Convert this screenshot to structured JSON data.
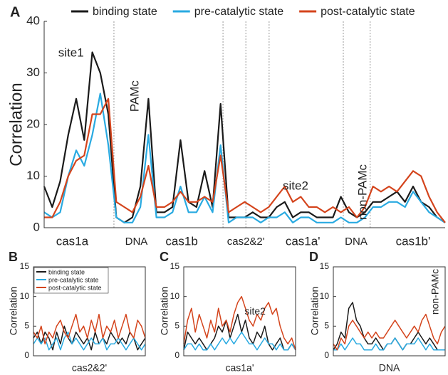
{
  "chart_data": [
    {
      "type": "line",
      "panel_label": "A",
      "ylabel": "Correlation",
      "x": [
        0,
        2,
        4,
        6,
        8,
        10,
        12,
        14,
        16,
        18,
        20,
        22,
        24,
        26,
        28,
        30,
        32,
        34,
        36,
        38,
        40,
        42,
        44,
        46,
        48,
        50,
        52,
        54,
        56,
        58,
        60,
        62,
        64,
        66,
        68,
        70,
        72,
        74,
        76,
        78,
        80,
        82,
        84,
        86,
        88,
        90,
        92,
        94,
        96,
        98,
        100
      ],
      "xlim": [
        0,
        100
      ],
      "ylim": [
        0,
        40
      ],
      "yticks": [
        0,
        10,
        20,
        30,
        40
      ],
      "legend": "top",
      "series": [
        {
          "name": "binding state",
          "color": "#1a1a1a",
          "values": [
            8,
            4,
            9,
            18,
            25,
            17,
            34,
            30,
            22,
            2,
            1,
            2,
            8,
            25,
            3,
            3,
            4,
            17,
            5,
            4,
            11,
            4,
            24,
            2,
            2,
            2,
            3,
            2,
            2,
            4,
            5,
            2,
            3,
            3,
            2,
            2,
            2,
            6,
            3,
            2,
            3,
            5,
            5,
            6,
            7,
            5,
            8,
            5,
            4,
            2,
            1
          ]
        },
        {
          "name": "pre-catalytic state",
          "color": "#29aae1",
          "values": [
            3,
            2,
            3,
            10,
            15,
            12,
            18,
            26,
            16,
            2,
            1,
            1,
            4,
            18,
            2,
            2,
            3,
            8,
            3,
            3,
            6,
            3,
            16,
            1,
            2,
            2,
            2,
            1,
            2,
            2,
            3,
            1,
            2,
            2,
            1,
            1,
            1,
            2,
            1,
            1,
            2,
            4,
            4,
            5,
            5,
            4,
            7,
            5,
            3,
            2,
            1
          ]
        },
        {
          "name": "post-catalytic state",
          "color": "#d4441c",
          "values": [
            2,
            2,
            5,
            10,
            13,
            14,
            22,
            22,
            25,
            5,
            4,
            3,
            6,
            12,
            4,
            4,
            5,
            7,
            5,
            5,
            6,
            5,
            14,
            3,
            4,
            5,
            4,
            3,
            4,
            6,
            8,
            5,
            6,
            4,
            4,
            3,
            4,
            3,
            4,
            2,
            4,
            8,
            7,
            8,
            7,
            9,
            11,
            10,
            6,
            3,
            1
          ]
        }
      ],
      "separators": [
        17.4,
        44.6,
        50.3,
        56.1,
        74.6,
        81.3
      ],
      "region_labels": [
        {
          "label": "cas1a",
          "x": 7
        },
        {
          "label": "DNA",
          "x": 23
        },
        {
          "label": "cas1b",
          "x": 34.3
        },
        {
          "label": "cas2&2'",
          "x": 50.3
        },
        {
          "label": "cas1a'",
          "x": 64.5
        },
        {
          "label": "DNA",
          "x": 77.8
        },
        {
          "label": "cas1b'",
          "x": 92
        }
      ],
      "annotations": [
        {
          "text": "site1",
          "x": 6.7,
          "y": 33.8
        },
        {
          "text": "PAMc",
          "x": 22.7,
          "y": 25.5
        },
        {
          "text": "site2",
          "x": 62.7,
          "y": 8
        },
        {
          "text": "non-PAMc",
          "x": 79.6,
          "y": 6.9
        }
      ]
    },
    {
      "type": "line",
      "panel_label": "B",
      "ylabel": "Correlation",
      "xlabel": "cas2&2'",
      "x": [
        0,
        1,
        2,
        3,
        4,
        5,
        6,
        7,
        8,
        9,
        10,
        11,
        12,
        13,
        14,
        15,
        16,
        17,
        18,
        19,
        20,
        21,
        22,
        23,
        24,
        25,
        26,
        27,
        28,
        29
      ],
      "xlim": [
        0,
        29
      ],
      "ylim": [
        0,
        15
      ],
      "yticks": [
        0,
        5,
        10,
        15
      ],
      "legend": "upper left",
      "series": [
        {
          "name": "binding state",
          "color": "#1a1a1a",
          "values": [
            3,
            4,
            2,
            4,
            3,
            1,
            4,
            2,
            5,
            3,
            2,
            4,
            3,
            2,
            3,
            1,
            4,
            2,
            3,
            2,
            4,
            3,
            2,
            3,
            2,
            4,
            3,
            1,
            2,
            3
          ]
        },
        {
          "name": "pre-catalytic state",
          "color": "#29aae1",
          "values": [
            2,
            3,
            2,
            3,
            1,
            2,
            3,
            1,
            3,
            4,
            2,
            3,
            2,
            1,
            2,
            3,
            2,
            2,
            3,
            1,
            2,
            2,
            3,
            2,
            1,
            2,
            3,
            2,
            1,
            2
          ]
        },
        {
          "name": "post-catalytic state",
          "color": "#d4441c",
          "values": [
            4,
            3,
            5,
            2,
            4,
            3,
            5,
            6,
            4,
            3,
            5,
            7,
            4,
            5,
            3,
            6,
            4,
            7,
            3,
            5,
            4,
            6,
            3,
            5,
            7,
            4,
            3,
            6,
            5,
            3
          ]
        }
      ]
    },
    {
      "type": "line",
      "panel_label": "C",
      "ylabel": "Correlation",
      "xlabel": "cas1a'",
      "x": [
        0,
        1,
        2,
        3,
        4,
        5,
        6,
        7,
        8,
        9,
        10,
        11,
        12,
        13,
        14,
        15,
        16,
        17,
        18,
        19,
        20,
        21,
        22,
        23,
        24,
        25,
        26,
        27,
        28,
        29
      ],
      "xlim": [
        0,
        29
      ],
      "ylim": [
        0,
        15
      ],
      "yticks": [
        0,
        5,
        10,
        15
      ],
      "series": [
        {
          "color": "#1a1a1a",
          "values": [
            1,
            4,
            3,
            2,
            3,
            2,
            1,
            2,
            3,
            5,
            4,
            6,
            3,
            5,
            7,
            4,
            6,
            3,
            2,
            4,
            3,
            5,
            2,
            1,
            2,
            3,
            1,
            1,
            2,
            1
          ]
        },
        {
          "color": "#29aae1",
          "values": [
            1,
            2,
            2,
            1,
            2,
            1,
            1,
            2,
            1,
            2,
            3,
            2,
            3,
            2,
            3,
            4,
            3,
            2,
            2,
            1,
            2,
            3,
            2,
            2,
            1,
            2,
            1,
            1,
            2,
            1
          ]
        },
        {
          "color": "#d4441c",
          "values": [
            2,
            6,
            8,
            4,
            7,
            5,
            3,
            6,
            4,
            8,
            5,
            6,
            4,
            7,
            9,
            10,
            8,
            6,
            5,
            7,
            6,
            8,
            9,
            7,
            8,
            5,
            3,
            2,
            3,
            1
          ]
        }
      ],
      "annotations": [
        {
          "text": "site2",
          "x": 18.5,
          "y": 7.4
        }
      ]
    },
    {
      "type": "line",
      "panel_label": "D",
      "ylabel": "Correlation",
      "xlabel": "DNA",
      "x": [
        0,
        1,
        2,
        3,
        4,
        5,
        6,
        7,
        8,
        9,
        10,
        11,
        12,
        13,
        14,
        15,
        16,
        17,
        18,
        19,
        20,
        21,
        22,
        23,
        24,
        25,
        26,
        27,
        28,
        29
      ],
      "xlim": [
        0,
        29
      ],
      "ylim": [
        0,
        15
      ],
      "yticks": [
        0,
        5,
        10,
        15
      ],
      "series": [
        {
          "color": "#1a1a1a",
          "values": [
            1,
            2,
            4,
            3,
            8,
            9,
            6,
            5,
            3,
            2,
            2,
            3,
            2,
            1,
            2,
            2,
            3,
            2,
            1,
            2,
            2,
            3,
            4,
            3,
            2,
            3,
            2,
            1,
            1,
            1
          ]
        },
        {
          "color": "#29aae1",
          "values": [
            1,
            1,
            2,
            1,
            2,
            3,
            2,
            2,
            1,
            1,
            1,
            2,
            1,
            1,
            2,
            2,
            3,
            2,
            1,
            2,
            2,
            2,
            3,
            2,
            1,
            2,
            1,
            1,
            1,
            1
          ]
        },
        {
          "color": "#d4441c",
          "values": [
            2,
            1,
            3,
            2,
            5,
            6,
            5,
            4,
            3,
            4,
            3,
            4,
            3,
            3,
            4,
            5,
            6,
            5,
            4,
            3,
            4,
            5,
            4,
            6,
            7,
            5,
            3,
            2,
            4,
            5
          ]
        }
      ],
      "annotations": [
        {
          "text": "non-PAMc",
          "x": 26.6,
          "y": 10.8
        }
      ]
    }
  ]
}
